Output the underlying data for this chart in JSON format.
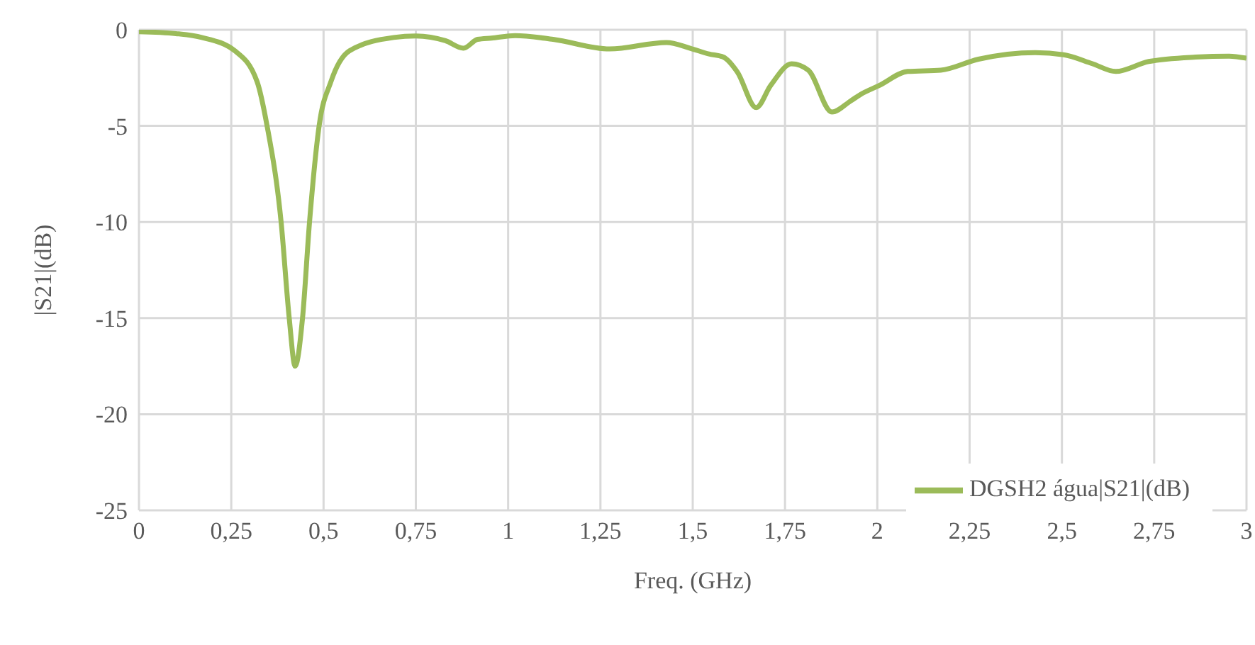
{
  "chart_data": {
    "type": "line",
    "xlabel": "Freq. (GHz)",
    "ylabel": "|S21|(dB)",
    "xlim": [
      0,
      3
    ],
    "ylim": [
      -25,
      0
    ],
    "xticks": [
      0,
      {
        "value": 0.25,
        "label": "0,25"
      },
      {
        "value": 0.5,
        "label": "0,5"
      },
      {
        "value": 0.75,
        "label": "0,75"
      },
      1,
      {
        "value": 1.25,
        "label": "1,25"
      },
      {
        "value": 1.5,
        "label": "1,5"
      },
      {
        "value": 1.75,
        "label": "1,75"
      },
      2,
      {
        "value": 2.25,
        "label": "2,25"
      },
      {
        "value": 2.5,
        "label": "2,5"
      },
      {
        "value": 2.75,
        "label": "2,75"
      },
      3
    ],
    "yticks": [
      -25,
      -20,
      -15,
      -10,
      -5,
      0
    ],
    "grid": true,
    "legend": "bottom right",
    "marker": "none",
    "line_style": "solid",
    "x": [
      0,
      0.1,
      0.17,
      0.26,
      0.32,
      0.347,
      0.385,
      0.407,
      0.423,
      0.443,
      0.462,
      0.488,
      0.52,
      0.57,
      0.69,
      0.75,
      0.83,
      0.879,
      0.917,
      0.955,
      1.019,
      1.122,
      1.275,
      1.429,
      1.493,
      1.544,
      1.583,
      1.621,
      1.672,
      1.711,
      1.768,
      1.813,
      1.877,
      1.928,
      1.954,
      2.005,
      2.082,
      2.172,
      2.274,
      2.428,
      2.505,
      2.582,
      2.646,
      2.735,
      2.862,
      2.953,
      3.0
    ],
    "series": [
      {
        "name": "DGSH2 água|S21|(dB)",
        "color": "#9bbb59",
        "values": [
          -0.1,
          -0.2,
          -0.4,
          -1.1,
          -2.7,
          -5,
          -10,
          -15,
          -17.5,
          -15,
          -10,
          -5,
          -2.7,
          -1.1,
          -0.4,
          -0.32,
          -0.57,
          -0.96,
          -0.5,
          -0.43,
          -0.3,
          -0.5,
          -1.0,
          -0.66,
          -0.96,
          -1.26,
          -1.42,
          -2.2,
          -4.05,
          -2.9,
          -1.77,
          -2.1,
          -4.28,
          -3.7,
          -3.37,
          -2.9,
          -2.17,
          -2.1,
          -1.53,
          -1.19,
          -1.3,
          -1.76,
          -2.17,
          -1.65,
          -1.42,
          -1.37,
          -1.48
        ]
      }
    ]
  }
}
